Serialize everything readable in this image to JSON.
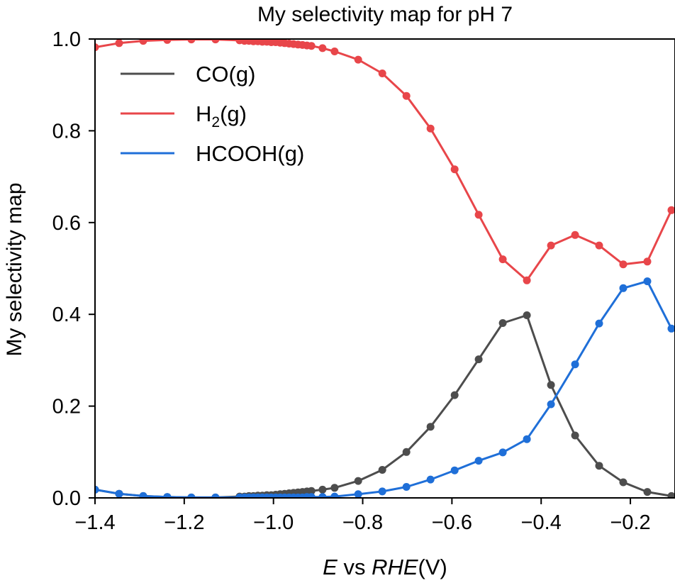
{
  "chart_data": {
    "type": "line",
    "title": "My selectivity map for pH 7",
    "xlabel": {
      "italic_part": "E",
      "middle": " vs ",
      "italic_part2": "RHE",
      "unit": "(V)"
    },
    "ylabel": "My selectivity map",
    "xlim": [
      -1.4,
      -0.1
    ],
    "ylim": [
      0.0,
      1.0
    ],
    "xticks": [
      -1.4,
      -1.2,
      -1.0,
      -0.8,
      -0.6,
      -0.4,
      -0.2
    ],
    "xtick_labels": [
      "−1.4",
      "−1.2",
      "−1.0",
      "−0.8",
      "−0.6",
      "−0.4",
      "−0.2"
    ],
    "yticks": [
      0.0,
      0.2,
      0.4,
      0.6,
      0.8,
      1.0
    ],
    "ytick_labels": [
      "0.0",
      "0.2",
      "0.4",
      "0.6",
      "0.8",
      "1.0"
    ],
    "grid": false,
    "legend_position": "top-left",
    "series": [
      {
        "name": "CO(g)",
        "label_main": "CO(g)",
        "label_sub": "",
        "label_tail": "",
        "color": "#4d4d4d",
        "x": [
          -1.4,
          -1.346,
          -1.292,
          -1.238,
          -1.184,
          -1.13,
          -1.076,
          -1.065,
          -1.055,
          -1.045,
          -1.035,
          -1.025,
          -1.015,
          -1.005,
          -0.995,
          -0.985,
          -0.975,
          -0.965,
          -0.955,
          -0.945,
          -0.935,
          -0.925,
          -0.915,
          -0.89,
          -0.863,
          -0.81,
          -0.756,
          -0.702,
          -0.648,
          -0.594,
          -0.54,
          -0.486,
          -0.432,
          -0.378,
          -0.324,
          -0.27,
          -0.216,
          -0.162,
          -0.108
        ],
        "y": [
          0.018,
          0.009,
          0.004,
          0.002,
          0.001,
          0.001,
          0.003,
          0.003,
          0.004,
          0.004,
          0.005,
          0.005,
          0.006,
          0.006,
          0.007,
          0.008,
          0.009,
          0.01,
          0.011,
          0.012,
          0.013,
          0.014,
          0.015,
          0.018,
          0.022,
          0.037,
          0.061,
          0.1,
          0.155,
          0.224,
          0.302,
          0.381,
          0.398,
          0.246,
          0.136,
          0.07,
          0.034,
          0.013,
          0.004
        ]
      },
      {
        "name": "H2(g)",
        "label_main": "H",
        "label_sub": "2",
        "label_tail": "(g)",
        "color": "#e8464a",
        "x": [
          -1.4,
          -1.346,
          -1.292,
          -1.238,
          -1.184,
          -1.13,
          -1.076,
          -1.065,
          -1.055,
          -1.045,
          -1.035,
          -1.025,
          -1.015,
          -1.005,
          -0.995,
          -0.985,
          -0.975,
          -0.965,
          -0.955,
          -0.945,
          -0.935,
          -0.925,
          -0.915,
          -0.89,
          -0.863,
          -0.81,
          -0.756,
          -0.702,
          -0.648,
          -0.594,
          -0.54,
          -0.486,
          -0.432,
          -0.378,
          -0.324,
          -0.27,
          -0.216,
          -0.162,
          -0.108
        ],
        "y": [
          0.982,
          0.991,
          0.996,
          0.998,
          0.999,
          0.999,
          0.997,
          0.996,
          0.996,
          0.995,
          0.995,
          0.994,
          0.994,
          0.993,
          0.993,
          0.992,
          0.991,
          0.99,
          0.989,
          0.988,
          0.987,
          0.986,
          0.985,
          0.98,
          0.973,
          0.955,
          0.925,
          0.876,
          0.805,
          0.716,
          0.617,
          0.52,
          0.474,
          0.55,
          0.573,
          0.55,
          0.509,
          0.515,
          0.627
        ]
      },
      {
        "name": "HCOOH(g)",
        "label_main": "HCOOH(g)",
        "label_sub": "",
        "label_tail": "",
        "color": "#1f6fd8",
        "x": [
          -1.4,
          -1.346,
          -1.292,
          -1.238,
          -1.184,
          -1.13,
          -1.076,
          -1.065,
          -1.055,
          -1.045,
          -1.035,
          -1.025,
          -1.015,
          -1.005,
          -0.995,
          -0.985,
          -0.975,
          -0.965,
          -0.955,
          -0.945,
          -0.935,
          -0.925,
          -0.915,
          -0.89,
          -0.863,
          -0.81,
          -0.756,
          -0.702,
          -0.648,
          -0.594,
          -0.54,
          -0.486,
          -0.432,
          -0.378,
          -0.324,
          -0.27,
          -0.216,
          -0.162,
          -0.108
        ],
        "y": [
          0.018,
          0.009,
          0.004,
          0.002,
          0.001,
          0.001,
          0.001,
          0.001,
          0.001,
          0.001,
          0.001,
          0.001,
          0.001,
          0.001,
          0.001,
          0.001,
          0.001,
          0.001,
          0.001,
          0.001,
          0.001,
          0.002,
          0.002,
          0.002,
          0.003,
          0.008,
          0.014,
          0.024,
          0.04,
          0.06,
          0.081,
          0.099,
          0.128,
          0.204,
          0.291,
          0.38,
          0.457,
          0.472,
          0.369
        ]
      }
    ]
  }
}
